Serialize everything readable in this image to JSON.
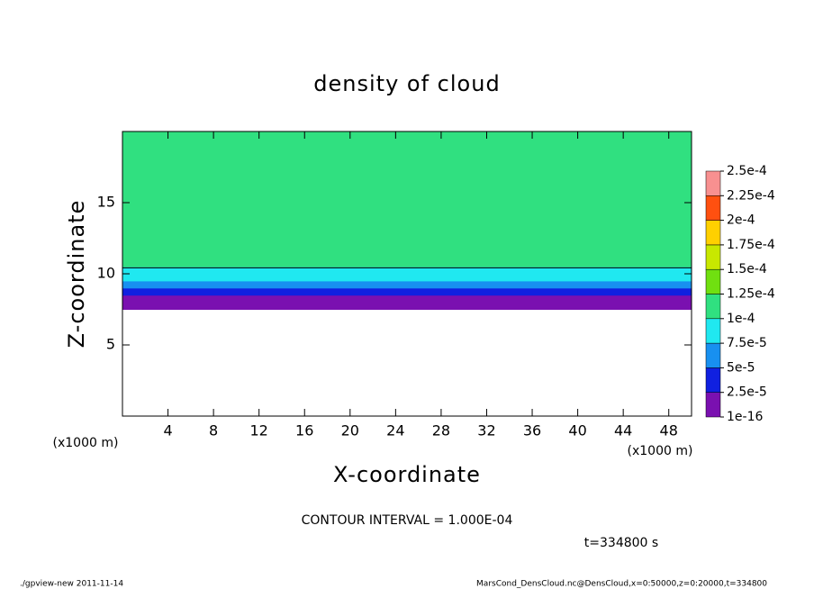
{
  "chart_data": {
    "type": "heatmap",
    "title": "density of cloud",
    "x_label": "X-coordinate",
    "y_label": "Z-coordinate",
    "x_unit_label": "(x1000 m)",
    "y_unit_label": "(x1000 m)",
    "xlim": [
      0,
      50
    ],
    "ylim": [
      0,
      20
    ],
    "xticks": [
      4,
      8,
      12,
      16,
      20,
      24,
      28,
      32,
      36,
      40,
      44,
      48
    ],
    "yticks": [
      5,
      10,
      15
    ],
    "z": [
      7.5,
      8,
      8.5,
      9,
      9.5,
      10,
      10.5,
      11,
      11.5,
      12,
      12.5,
      13,
      13.5,
      14,
      14.5,
      15,
      15.5,
      16,
      16.5,
      17,
      17.5,
      18,
      18.5,
      19,
      19.5
    ],
    "dz": 0.5,
    "values": [
      1e-05,
      2e-05,
      4e-05,
      6e-05,
      8e-05,
      9.5e-05,
      0.00011,
      0.00012,
      0.00012,
      0.00012,
      0.00012,
      0.00012,
      0.00012,
      0.00012,
      0.00012,
      0.00012,
      0.00012,
      0.00012,
      0.00012,
      0.00012,
      0.00012,
      0.00012,
      0.00012,
      0.00012,
      0.00012
    ],
    "colorbar": {
      "levels": [
        {
          "value": 1e-16,
          "label": "1e-16"
        },
        {
          "value": 2.5e-05,
          "label": "2.5e-5"
        },
        {
          "value": 5e-05,
          "label": "5e-5"
        },
        {
          "value": 7.5e-05,
          "label": "7.5e-5"
        },
        {
          "value": 0.0001,
          "label": "1e-4"
        },
        {
          "value": 0.000125,
          "label": "1.25e-4"
        },
        {
          "value": 0.00015,
          "label": "1.5e-4"
        },
        {
          "value": 0.000175,
          "label": "1.75e-4"
        },
        {
          "value": 0.0002,
          "label": "2e-4"
        },
        {
          "value": 0.000225,
          "label": "2.25e-4"
        },
        {
          "value": 0.00025,
          "label": "2.5e-4"
        }
      ],
      "colors": [
        "#7a10b0",
        "#1020e0",
        "#1890f0",
        "#20e8f0",
        "#30e080",
        "#70e010",
        "#c8e800",
        "#ffd000",
        "#ff5010",
        "#f89090"
      ]
    },
    "contour_line": {
      "value": 0.0001,
      "color": "#000000"
    },
    "contour_interval_text": "CONTOUR INTERVAL = 1.000E-04",
    "time_text": "t=334800 s",
    "footer_left": "./gpview-new   2011-11-14",
    "footer_right": "MarsCond_DensCloud.nc@DensCloud,x=0:50000,z=0:20000,t=334800"
  }
}
